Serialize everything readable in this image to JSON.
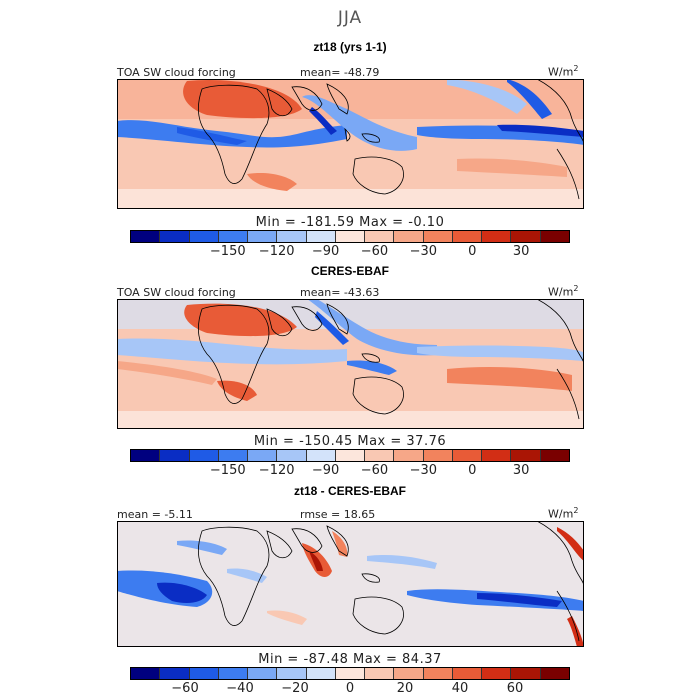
{
  "season": "JJA",
  "units": "W/m2",
  "colors": {
    "scale": [
      "#00007f",
      "#0a2dc4",
      "#1f5be6",
      "#3d7cf0",
      "#7aa8f5",
      "#a7c6f7",
      "#d3e3fa",
      "#fce6dc",
      "#f9c8b3",
      "#f6a788",
      "#f2835d",
      "#e85b37",
      "#d22e15",
      "#aa1505",
      "#7a0000"
    ],
    "continent": "#000000"
  },
  "chart_data": [
    {
      "type": "heatmap",
      "title": "zt18 (yrs 1-1)",
      "label_left": "TOA SW cloud forcing",
      "label_center": "mean= -48.79",
      "units": "W/m2",
      "min_max_text": "Min = -181.59 Max = -0.10",
      "min": -181.59,
      "max": -0.1,
      "mean": -48.79,
      "colorbar_ticks": [
        "-150",
        "-120",
        "-90",
        "-60",
        "-30",
        "0",
        "30"
      ],
      "colorbar_range": [
        -210,
        60
      ]
    },
    {
      "type": "heatmap",
      "title": "CERES-EBAF",
      "label_left": "TOA SW cloud forcing",
      "label_center": "mean= -43.63",
      "units": "W/m2",
      "min_max_text": "Min = -150.45 Max = 37.76",
      "min": -150.45,
      "max": 37.76,
      "mean": -43.63,
      "colorbar_ticks": [
        "-150",
        "-120",
        "-90",
        "-60",
        "-30",
        "0",
        "30"
      ],
      "colorbar_range": [
        -210,
        60
      ]
    },
    {
      "type": "heatmap",
      "title": "zt18 - CERES-EBAF",
      "label_left": "mean = -5.11",
      "label_center": "rmse = 18.65",
      "units": "W/m2",
      "min_max_text": "Min = -87.48 Max = 84.37",
      "min": -87.48,
      "max": 84.37,
      "mean": -5.11,
      "rmse": 18.65,
      "colorbar_ticks": [
        "-60",
        "-40",
        "-20",
        "0",
        "20",
        "40",
        "60"
      ],
      "colorbar_range": [
        -80,
        80
      ]
    }
  ]
}
